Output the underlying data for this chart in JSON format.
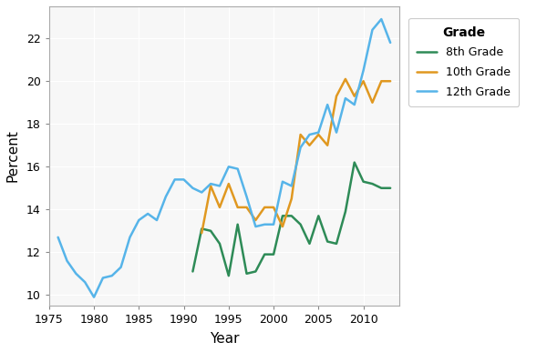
{
  "grade_8": {
    "years": [
      1991,
      1992,
      1993,
      1994,
      1995,
      1996,
      1997,
      1998,
      1999,
      2000,
      2001,
      2002,
      2003,
      2004,
      2005,
      2006,
      2007,
      2008,
      2009,
      2010,
      2011,
      2012,
      2013
    ],
    "values": [
      11.1,
      13.1,
      13.0,
      12.4,
      10.9,
      13.3,
      11.0,
      11.1,
      11.9,
      11.9,
      13.7,
      13.7,
      13.3,
      12.4,
      13.7,
      12.5,
      12.4,
      13.9,
      16.2,
      15.3,
      15.2,
      15.0,
      15.0
    ],
    "color": "#2e8b57",
    "label": "8th Grade"
  },
  "grade_10": {
    "years": [
      1992,
      1993,
      1994,
      1995,
      1996,
      1997,
      1998,
      1999,
      2000,
      2001,
      2002,
      2003,
      2004,
      2005,
      2006,
      2007,
      2008,
      2009,
      2010,
      2011,
      2012,
      2013
    ],
    "values": [
      12.9,
      15.1,
      14.1,
      15.2,
      14.1,
      14.1,
      13.5,
      14.1,
      14.1,
      13.2,
      14.5,
      17.5,
      17.0,
      17.5,
      17.0,
      19.3,
      20.1,
      19.3,
      20.0,
      19.0,
      20.0,
      20.0
    ],
    "color": "#e09820",
    "label": "10th Grade"
  },
  "grade_12": {
    "years": [
      1976,
      1977,
      1978,
      1979,
      1980,
      1981,
      1982,
      1983,
      1984,
      1985,
      1986,
      1987,
      1988,
      1989,
      1990,
      1991,
      1992,
      1993,
      1994,
      1995,
      1996,
      1997,
      1998,
      1999,
      2000,
      2001,
      2002,
      2003,
      2004,
      2005,
      2006,
      2007,
      2008,
      2009,
      2010,
      2011,
      2012,
      2013
    ],
    "values": [
      12.7,
      11.6,
      11.0,
      10.6,
      9.9,
      10.8,
      10.9,
      11.3,
      12.7,
      13.5,
      13.8,
      13.5,
      14.6,
      15.4,
      15.4,
      15.0,
      14.8,
      15.2,
      15.1,
      16.0,
      15.9,
      14.6,
      13.2,
      13.3,
      13.3,
      15.3,
      15.1,
      16.9,
      17.5,
      17.6,
      18.9,
      17.6,
      19.2,
      18.9,
      20.5,
      22.4,
      22.9,
      21.8
    ],
    "color": "#56b4e9",
    "label": "12th Grade"
  },
  "xlabel": "Year",
  "ylabel": "Percent",
  "legend_title": "Grade",
  "xlim": [
    1975,
    2014
  ],
  "ylim": [
    9.5,
    23.5
  ],
  "xticks": [
    1975,
    1980,
    1985,
    1990,
    1995,
    2000,
    2005,
    2010
  ],
  "yticks": [
    10,
    12,
    14,
    16,
    18,
    20,
    22
  ],
  "plot_bg_color": "#f7f7f7",
  "fig_bg_color": "#ffffff",
  "grid_color": "#ffffff",
  "linewidth": 1.8
}
